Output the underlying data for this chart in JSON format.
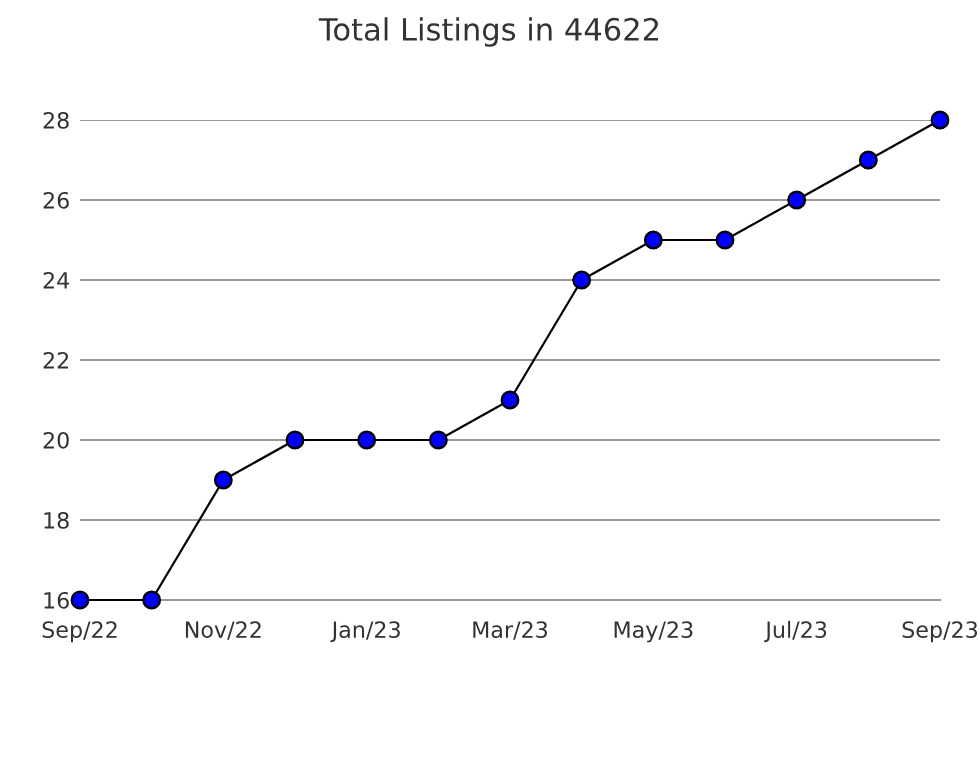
{
  "chart_data": {
    "type": "line",
    "title": "Total Listings in 44622",
    "categories": [
      "Sep/22",
      null,
      "Nov/22",
      null,
      "Jan/23",
      null,
      "Mar/23",
      null,
      "May/23",
      null,
      "Jul/23",
      null,
      "Sep/23"
    ],
    "series": [
      {
        "color": "#0000ff",
        "values": [
          16,
          16,
          19,
          20,
          20,
          20,
          21,
          24,
          25,
          25,
          26,
          27,
          28
        ]
      }
    ],
    "ylim": [
      16,
      28
    ],
    "yticks": [
      16,
      18,
      20,
      22,
      24,
      26,
      28
    ],
    "grid": "y",
    "marker": "circle",
    "line_style": "solid"
  }
}
